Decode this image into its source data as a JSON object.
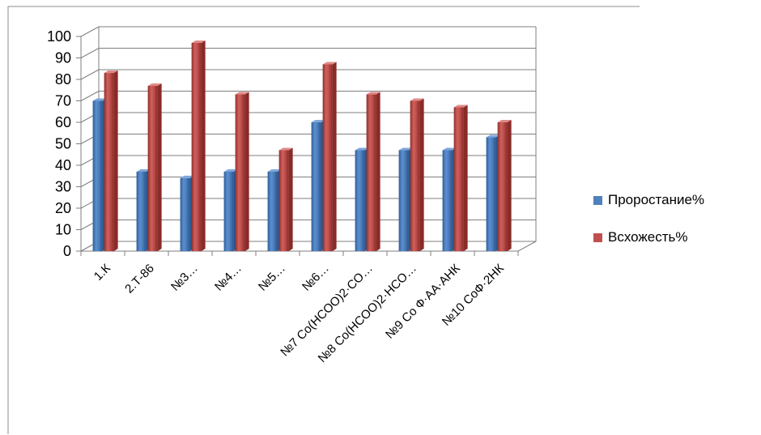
{
  "chart_data": {
    "type": "bar",
    "title": "",
    "xlabel": "",
    "ylabel": "",
    "ylim": [
      0,
      100
    ],
    "yticks": [
      0,
      10,
      20,
      30,
      40,
      50,
      60,
      70,
      80,
      90,
      100
    ],
    "grid": true,
    "legend_position": "right",
    "categories": [
      "1.К",
      "2.Т-86",
      "№3…",
      "№4…",
      "№5…",
      "№6…",
      "№7  Co(HCOO)2·CO…",
      "№8  Co(HCOO)2·HCO…",
      "№9  Co Ф·АА·АНК",
      "№10  CoФ·2НК"
    ],
    "series": [
      {
        "name": "Проростание%",
        "color": "#4F81BD",
        "values": [
          70,
          37,
          34,
          37,
          37,
          60,
          47,
          47,
          47,
          53
        ]
      },
      {
        "name": "Всхожесть%",
        "color": "#C0504D",
        "values": [
          83,
          77,
          97,
          73,
          47,
          87,
          73,
          70,
          67,
          60
        ]
      }
    ]
  }
}
